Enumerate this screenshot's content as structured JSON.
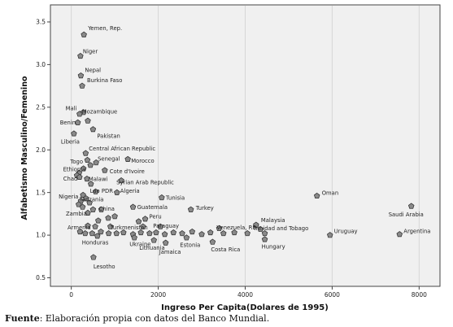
{
  "source_note": {
    "label": "Fuente",
    "text": ": Elaboración propia con datos del Banco Mundial."
  },
  "chart_data": {
    "type": "scatter",
    "xlabel": "Ingreso Per Capita(Dolares de 1995)",
    "ylabel": "Alfabetismo Masculino/Femenino",
    "xlim": [
      -480,
      8480
    ],
    "ylim": [
      0.4,
      3.7
    ],
    "xticks": [
      0,
      2000,
      4000,
      6000,
      8000
    ],
    "yticks": [
      0.5,
      1.0,
      1.5,
      2.0,
      2.5,
      3.0,
      3.5
    ],
    "ytick_labels": [
      "0.5",
      "1.0",
      "1.5",
      "2.0",
      "2.5",
      "3.0",
      "3.5"
    ],
    "grid": "vertical",
    "marker_color": "#8a8a8a",
    "points": [
      {
        "x": 290,
        "y": 3.35,
        "label": "Yemen, Rep."
      },
      {
        "x": 210,
        "y": 3.1,
        "label": "Niger"
      },
      {
        "x": 220,
        "y": 2.87,
        "label": "Nepal"
      },
      {
        "x": 250,
        "y": 2.75,
        "label": "Burkina Faso"
      },
      {
        "x": 280,
        "y": 2.44,
        "label": "Mali"
      },
      {
        "x": 190,
        "y": 2.42,
        "label": "Mozambique"
      },
      {
        "x": 380,
        "y": 2.34,
        "label": ""
      },
      {
        "x": 150,
        "y": 2.32,
        "label": "Benin"
      },
      {
        "x": 500,
        "y": 2.24,
        "label": "Pakistan"
      },
      {
        "x": 60,
        "y": 2.19,
        "label": "Liberia"
      },
      {
        "x": 330,
        "y": 1.96,
        "label": "Central African Republic"
      },
      {
        "x": 370,
        "y": 1.88,
        "label": "Togo"
      },
      {
        "x": 1300,
        "y": 1.89,
        "label": "Morocco"
      },
      {
        "x": 570,
        "y": 1.85,
        "label": "Senegal"
      },
      {
        "x": 440,
        "y": 1.82,
        "label": ""
      },
      {
        "x": 280,
        "y": 1.78,
        "label": "Ethiopia"
      },
      {
        "x": 770,
        "y": 1.76,
        "label": "Cote d'Ivoire"
      },
      {
        "x": 180,
        "y": 1.73,
        "label": ""
      },
      {
        "x": 130,
        "y": 1.7,
        "label": ""
      },
      {
        "x": 190,
        "y": 1.68,
        "label": "Chad"
      },
      {
        "x": 360,
        "y": 1.66,
        "label": "Malawi"
      },
      {
        "x": 1150,
        "y": 1.64,
        "label": "Syrian Arab Republic"
      },
      {
        "x": 450,
        "y": 1.6,
        "label": ""
      },
      {
        "x": 560,
        "y": 1.51,
        "label": "Lao PDR"
      },
      {
        "x": 1050,
        "y": 1.5,
        "label": "Algeria"
      },
      {
        "x": 2080,
        "y": 1.44,
        "label": "Tunisia"
      },
      {
        "x": 270,
        "y": 1.47,
        "label": "Nigeria"
      },
      {
        "x": 340,
        "y": 1.43,
        "label": "Tanzania"
      },
      {
        "x": 220,
        "y": 1.4,
        "label": ""
      },
      {
        "x": 420,
        "y": 1.38,
        "label": ""
      },
      {
        "x": 1420,
        "y": 1.33,
        "label": "Guatemala"
      },
      {
        "x": 2750,
        "y": 1.3,
        "label": "Turkey"
      },
      {
        "x": 170,
        "y": 1.36,
        "label": ""
      },
      {
        "x": 260,
        "y": 1.33,
        "label": ""
      },
      {
        "x": 500,
        "y": 1.3,
        "label": ""
      },
      {
        "x": 690,
        "y": 1.3,
        "label": "China"
      },
      {
        "x": 380,
        "y": 1.26,
        "label": "Zambia"
      },
      {
        "x": 1700,
        "y": 1.19,
        "label": "Peru"
      },
      {
        "x": 1550,
        "y": 1.16,
        "label": ""
      },
      {
        "x": 1000,
        "y": 1.22,
        "label": ""
      },
      {
        "x": 850,
        "y": 1.2,
        "label": ""
      },
      {
        "x": 620,
        "y": 1.17,
        "label": ""
      },
      {
        "x": 5650,
        "y": 1.46,
        "label": "Oman"
      },
      {
        "x": 7820,
        "y": 1.34,
        "label": "Saudi Arabia"
      },
      {
        "x": 4250,
        "y": 1.12,
        "label": "Malaysia"
      },
      {
        "x": 380,
        "y": 1.11,
        "label": "Armenia"
      },
      {
        "x": 550,
        "y": 1.1,
        "label": ""
      },
      {
        "x": 900,
        "y": 1.1,
        "label": "Turkmenistan"
      },
      {
        "x": 1650,
        "y": 1.1,
        "label": ""
      },
      {
        "x": 2050,
        "y": 1.1,
        "label": "Paraguay"
      },
      {
        "x": 3400,
        "y": 1.08,
        "label": "Venezuela, RB"
      },
      {
        "x": 4350,
        "y": 1.07,
        "label": "Trinidad and Tobago"
      },
      {
        "x": 5950,
        "y": 1.0,
        "label": "Uruguay"
      },
      {
        "x": 7550,
        "y": 1.01,
        "label": "Argentina"
      },
      {
        "x": 200,
        "y": 1.04,
        "label": ""
      },
      {
        "x": 320,
        "y": 1.02,
        "label": ""
      },
      {
        "x": 480,
        "y": 1.02,
        "label": ""
      },
      {
        "x": 680,
        "y": 1.04,
        "label": ""
      },
      {
        "x": 860,
        "y": 1.02,
        "label": ""
      },
      {
        "x": 1040,
        "y": 1.02,
        "label": ""
      },
      {
        "x": 1200,
        "y": 1.03,
        "label": ""
      },
      {
        "x": 1420,
        "y": 1.01,
        "label": ""
      },
      {
        "x": 1600,
        "y": 1.03,
        "label": ""
      },
      {
        "x": 1800,
        "y": 1.02,
        "label": ""
      },
      {
        "x": 1950,
        "y": 1.03,
        "label": ""
      },
      {
        "x": 2150,
        "y": 1.01,
        "label": ""
      },
      {
        "x": 2350,
        "y": 1.03,
        "label": ""
      },
      {
        "x": 2550,
        "y": 1.02,
        "label": ""
      },
      {
        "x": 2780,
        "y": 1.04,
        "label": ""
      },
      {
        "x": 3000,
        "y": 1.01,
        "label": ""
      },
      {
        "x": 3200,
        "y": 1.03,
        "label": ""
      },
      {
        "x": 3500,
        "y": 1.02,
        "label": ""
      },
      {
        "x": 3750,
        "y": 1.03,
        "label": ""
      },
      {
        "x": 4050,
        "y": 1.02,
        "label": ""
      },
      {
        "x": 4450,
        "y": 1.02,
        "label": ""
      },
      {
        "x": 600,
        "y": 0.99,
        "label": "Honduras"
      },
      {
        "x": 1450,
        "y": 0.97,
        "label": "Ukraine"
      },
      {
        "x": 1900,
        "y": 0.94,
        "label": "Lithuania"
      },
      {
        "x": 2170,
        "y": 0.91,
        "label": "Jamaica"
      },
      {
        "x": 2650,
        "y": 0.97,
        "label": "Estonia"
      },
      {
        "x": 3250,
        "y": 0.92,
        "label": "Costa Rica"
      },
      {
        "x": 4450,
        "y": 0.95,
        "label": "Hungary"
      },
      {
        "x": 510,
        "y": 0.74,
        "label": "Lesotho"
      }
    ]
  }
}
